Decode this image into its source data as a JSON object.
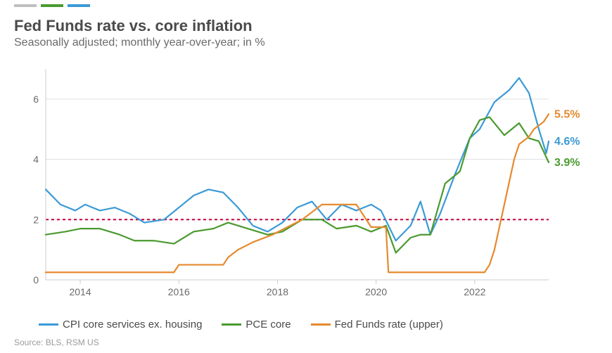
{
  "title": "Fed Funds rate vs. core inflation",
  "subtitle": "Seasonally adjusted; monthly year-over-year; in %",
  "source": "Source: BLS, RSM US",
  "chart": {
    "type": "line",
    "background_color": "#ffffff",
    "grid_color": "#e0e0e0",
    "axis_color": "#cccccc",
    "axis_label_color": "#6a6a6a",
    "x_domain": [
      2013.3,
      2023.5
    ],
    "xticks": [
      2014,
      2016,
      2018,
      2020,
      2022
    ],
    "ylim": [
      0,
      7
    ],
    "yticks": [
      0,
      2,
      4,
      6
    ],
    "reference_line": {
      "y": 2,
      "color": "#c9003c",
      "dash": "4,4",
      "width": 2
    },
    "line_width": 2.2,
    "series": [
      {
        "key": "cpi",
        "label": "CPI core services ex. housing",
        "color": "#3b9ad6",
        "end_label": "4.6%",
        "data": [
          [
            2013.3,
            3.0
          ],
          [
            2013.6,
            2.5
          ],
          [
            2013.9,
            2.3
          ],
          [
            2014.1,
            2.5
          ],
          [
            2014.4,
            2.3
          ],
          [
            2014.7,
            2.4
          ],
          [
            2015.0,
            2.2
          ],
          [
            2015.3,
            1.9
          ],
          [
            2015.7,
            2.0
          ],
          [
            2016.0,
            2.4
          ],
          [
            2016.3,
            2.8
          ],
          [
            2016.6,
            3.0
          ],
          [
            2016.9,
            2.9
          ],
          [
            2017.2,
            2.4
          ],
          [
            2017.5,
            1.8
          ],
          [
            2017.8,
            1.6
          ],
          [
            2018.1,
            1.9
          ],
          [
            2018.4,
            2.4
          ],
          [
            2018.7,
            2.6
          ],
          [
            2019.0,
            2.0
          ],
          [
            2019.3,
            2.5
          ],
          [
            2019.6,
            2.3
          ],
          [
            2019.9,
            2.5
          ],
          [
            2020.1,
            2.3
          ],
          [
            2020.4,
            1.3
          ],
          [
            2020.7,
            1.8
          ],
          [
            2020.9,
            2.6
          ],
          [
            2021.1,
            1.5
          ],
          [
            2021.3,
            2.2
          ],
          [
            2021.6,
            3.5
          ],
          [
            2021.9,
            4.7
          ],
          [
            2022.1,
            5.0
          ],
          [
            2022.4,
            5.9
          ],
          [
            2022.7,
            6.3
          ],
          [
            2022.9,
            6.7
          ],
          [
            2023.1,
            6.2
          ],
          [
            2023.3,
            5.0
          ],
          [
            2023.45,
            4.2
          ],
          [
            2023.5,
            4.6
          ]
        ]
      },
      {
        "key": "pce",
        "label": "PCE core",
        "color": "#4a9a2f",
        "end_label": "3.9%",
        "data": [
          [
            2013.3,
            1.5
          ],
          [
            2013.7,
            1.6
          ],
          [
            2014.0,
            1.7
          ],
          [
            2014.4,
            1.7
          ],
          [
            2014.8,
            1.5
          ],
          [
            2015.1,
            1.3
          ],
          [
            2015.5,
            1.3
          ],
          [
            2015.9,
            1.2
          ],
          [
            2016.3,
            1.6
          ],
          [
            2016.7,
            1.7
          ],
          [
            2017.0,
            1.9
          ],
          [
            2017.4,
            1.7
          ],
          [
            2017.8,
            1.5
          ],
          [
            2018.1,
            1.6
          ],
          [
            2018.5,
            2.0
          ],
          [
            2018.9,
            2.0
          ],
          [
            2019.2,
            1.7
          ],
          [
            2019.6,
            1.8
          ],
          [
            2019.9,
            1.6
          ],
          [
            2020.2,
            1.8
          ],
          [
            2020.4,
            0.9
          ],
          [
            2020.7,
            1.4
          ],
          [
            2020.9,
            1.5
          ],
          [
            2021.1,
            1.5
          ],
          [
            2021.4,
            3.2
          ],
          [
            2021.7,
            3.6
          ],
          [
            2021.9,
            4.7
          ],
          [
            2022.1,
            5.3
          ],
          [
            2022.3,
            5.4
          ],
          [
            2022.6,
            4.8
          ],
          [
            2022.9,
            5.2
          ],
          [
            2023.1,
            4.7
          ],
          [
            2023.3,
            4.6
          ],
          [
            2023.5,
            3.9
          ]
        ]
      },
      {
        "key": "fedfunds",
        "label": "Fed Funds rate (upper)",
        "color": "#e58a2e",
        "end_label": "5.5%",
        "data": [
          [
            2013.3,
            0.25
          ],
          [
            2015.9,
            0.25
          ],
          [
            2016.0,
            0.5
          ],
          [
            2016.9,
            0.5
          ],
          [
            2017.0,
            0.75
          ],
          [
            2017.2,
            1.0
          ],
          [
            2017.5,
            1.25
          ],
          [
            2017.9,
            1.5
          ],
          [
            2018.2,
            1.75
          ],
          [
            2018.5,
            2.0
          ],
          [
            2018.7,
            2.25
          ],
          [
            2018.9,
            2.5
          ],
          [
            2019.6,
            2.5
          ],
          [
            2019.7,
            2.25
          ],
          [
            2019.8,
            2.0
          ],
          [
            2019.9,
            1.75
          ],
          [
            2020.2,
            1.75
          ],
          [
            2020.25,
            0.25
          ],
          [
            2022.2,
            0.25
          ],
          [
            2022.3,
            0.5
          ],
          [
            2022.4,
            1.0
          ],
          [
            2022.5,
            1.75
          ],
          [
            2022.6,
            2.5
          ],
          [
            2022.7,
            3.25
          ],
          [
            2022.8,
            4.0
          ],
          [
            2022.9,
            4.5
          ],
          [
            2023.1,
            4.75
          ],
          [
            2023.2,
            5.0
          ],
          [
            2023.4,
            5.25
          ],
          [
            2023.5,
            5.5
          ]
        ]
      }
    ],
    "top_dash_colors": [
      "#bfbfbf",
      "#4a9a2f",
      "#3b9ad6"
    ]
  }
}
